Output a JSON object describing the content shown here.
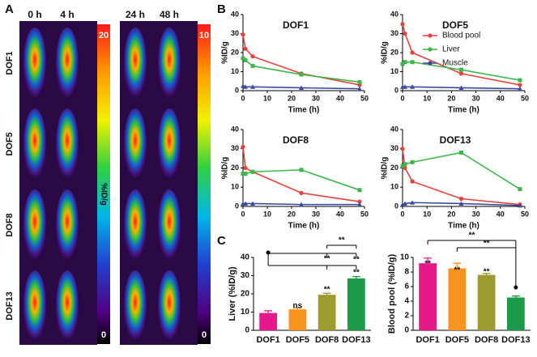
{
  "panel_labels": [
    "A",
    "B",
    "C"
  ],
  "panel_a": {
    "time_labels": [
      "0 h",
      "4 h",
      "24 h",
      "48 h"
    ],
    "rows": [
      "DOF1",
      "DOF5",
      "DOF8",
      "DOF13"
    ],
    "colorbars": [
      {
        "max": 20,
        "min": 0
      },
      {
        "max": 10,
        "min": 0
      }
    ],
    "colorbar_label": "%ID/g"
  },
  "chart_data": [
    {
      "type": "line",
      "title": "DOF1",
      "xlabel": "Time (h)",
      "ylabel": "%ID/g",
      "x": [
        0,
        1,
        4,
        24,
        48
      ],
      "xlim": [
        0,
        50
      ],
      "xticks": [
        0,
        10,
        20,
        30,
        40,
        50
      ],
      "ylim": [
        0,
        40
      ],
      "yticks": [
        0,
        10,
        20,
        30,
        40
      ],
      "legend": null,
      "series": [
        {
          "name": "Blood pool",
          "color": "#e8413c",
          "marker": "circle",
          "values": [
            29.5,
            22,
            18,
            9,
            3
          ]
        },
        {
          "name": "Liver",
          "color": "#3cb84a",
          "marker": "square",
          "values": [
            17,
            16,
            13,
            8.5,
            4.5
          ]
        },
        {
          "name": "Muscle",
          "color": "#3a4aa0",
          "marker": "triangle",
          "values": [
            2.5,
            2,
            2,
            1.5,
            1
          ]
        }
      ]
    },
    {
      "type": "line",
      "title": "DOF5",
      "xlabel": "Time (h)",
      "ylabel": "%ID/g",
      "x": [
        0,
        1,
        4,
        24,
        48
      ],
      "xlim": [
        0,
        50
      ],
      "xticks": [
        0,
        10,
        20,
        30,
        40,
        50
      ],
      "ylim": [
        0,
        40
      ],
      "yticks": [
        0,
        10,
        20,
        30,
        40
      ],
      "legend": "right",
      "series": [
        {
          "name": "Blood pool",
          "color": "#e8413c",
          "marker": "circle",
          "values": [
            35,
            30,
            20,
            9,
            3
          ]
        },
        {
          "name": "Liver",
          "color": "#3cb84a",
          "marker": "square",
          "values": [
            14,
            15,
            15,
            11,
            5.5
          ]
        },
        {
          "name": "Muscle",
          "color": "#3a4aa0",
          "marker": "triangle",
          "values": [
            2,
            2,
            2,
            1.5,
            1
          ]
        }
      ]
    },
    {
      "type": "line",
      "title": "DOF8",
      "xlabel": "Time (h)",
      "ylabel": "%ID/g",
      "x": [
        0,
        1,
        4,
        24,
        48
      ],
      "xlim": [
        0,
        50
      ],
      "xticks": [
        0,
        10,
        20,
        30,
        40,
        50
      ],
      "ylim": [
        0,
        40
      ],
      "yticks": [
        0,
        10,
        20,
        30,
        40
      ],
      "legend": null,
      "series": [
        {
          "name": "Blood pool",
          "color": "#e8413c",
          "marker": "circle",
          "values": [
            31,
            20,
            18,
            7,
            2.5
          ]
        },
        {
          "name": "Liver",
          "color": "#3cb84a",
          "marker": "square",
          "values": [
            17,
            17,
            18,
            19,
            8.5
          ]
        },
        {
          "name": "Muscle",
          "color": "#3a4aa0",
          "marker": "triangle",
          "values": [
            1.5,
            1.5,
            1.5,
            1,
            1
          ]
        }
      ]
    },
    {
      "type": "line",
      "title": "DOF13",
      "xlabel": "Time (h)",
      "ylabel": "%ID/g",
      "x": [
        0,
        1,
        4,
        24,
        48
      ],
      "xlim": [
        0,
        50
      ],
      "xticks": [
        0,
        10,
        20,
        30,
        40,
        50
      ],
      "ylim": [
        0,
        40
      ],
      "yticks": [
        0,
        10,
        20,
        30,
        40
      ],
      "legend": null,
      "series": [
        {
          "name": "Blood pool",
          "color": "#e8413c",
          "marker": "circle",
          "values": [
            30,
            20,
            13,
            4,
            1
          ]
        },
        {
          "name": "Liver",
          "color": "#3cb84a",
          "marker": "square",
          "values": [
            21,
            22,
            23,
            28,
            9
          ]
        },
        {
          "name": "Muscle",
          "color": "#3a4aa0",
          "marker": "triangle",
          "values": [
            1,
            1.5,
            2,
            1.5,
            0.5
          ]
        }
      ]
    },
    {
      "type": "bar",
      "ylabel": "Liver (%ID/g)",
      "categories": [
        "DOF1",
        "DOF5",
        "DOF8",
        "DOF13"
      ],
      "values": [
        9.5,
        11.5,
        19.5,
        28.5
      ],
      "errors": [
        1.2,
        0.8,
        0.8,
        1
      ],
      "colors": [
        "#e6198a",
        "#f7941d",
        "#9e9b2e",
        "#1c9a4a"
      ],
      "ylim": [
        0,
        40
      ],
      "yticks": [
        0,
        10,
        20,
        30,
        40
      ],
      "annotations": [
        "ns",
        "**",
        "**",
        "**",
        "**",
        "**"
      ]
    },
    {
      "type": "bar",
      "ylabel": "Blood pool (%ID/g)",
      "categories": [
        "DOF1",
        "DOF5",
        "DOF8",
        "DOF13"
      ],
      "values": [
        9.2,
        8.5,
        7.6,
        4.5
      ],
      "errors": [
        0.7,
        0.7,
        0.2,
        0.2
      ],
      "colors": [
        "#e6198a",
        "#f7941d",
        "#9e9b2e",
        "#1c9a4a"
      ],
      "ylim": [
        0,
        10
      ],
      "yticks": [
        0,
        2,
        4,
        6,
        8,
        10
      ],
      "annotations": [
        "**",
        "**",
        "**",
        "**",
        "**"
      ]
    }
  ]
}
